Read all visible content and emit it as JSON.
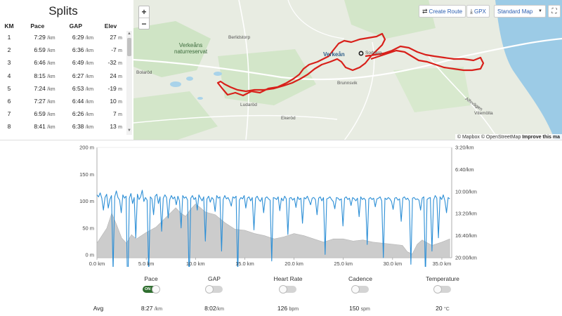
{
  "splits": {
    "title": "Splits",
    "headers": [
      "KM",
      "Pace",
      "GAP",
      "Elev"
    ],
    "rows": [
      {
        "km": "1",
        "pace": "7:29",
        "gap": "6:29",
        "elev": "27"
      },
      {
        "km": "2",
        "pace": "6:59",
        "gap": "6:36",
        "elev": "-7"
      },
      {
        "km": "3",
        "pace": "6:46",
        "gap": "6:49",
        "elev": "-32"
      },
      {
        "km": "4",
        "pace": "8:15",
        "gap": "6:27",
        "elev": "24"
      },
      {
        "km": "5",
        "pace": "7:24",
        "gap": "6:53",
        "elev": "-19"
      },
      {
        "km": "6",
        "pace": "7:27",
        "gap": "6:44",
        "elev": "10"
      },
      {
        "km": "7",
        "pace": "6:59",
        "gap": "6:26",
        "elev": "7"
      },
      {
        "km": "8",
        "pace": "8:41",
        "gap": "6:38",
        "elev": "13"
      }
    ],
    "pace_unit": "/km",
    "elev_unit": "m"
  },
  "map": {
    "labels": {
      "nature_reserve": "Verkeåns\nnaturreservat",
      "berlidstorp": "Berlidstorp",
      "verkean": "Verkeån",
      "brunnsvik": "Brunnsvik",
      "ludarod": "Ludaröd",
      "ekerod": "Ekeröd",
      "vitemolla": "Vitemölla",
      "alfsvagen": "Alfsvägen",
      "bolaro": "Bolaröd",
      "sodra": "Sodrarg"
    },
    "zoom_in": "+",
    "zoom_out": "−",
    "create_route": "Create Route",
    "gpx": "GPX",
    "map_type": "Standard Map",
    "attribution": {
      "mapbox": "© Mapbox",
      "osm": "© OpenStreetMap",
      "improve": "Improve this ma"
    },
    "colors": {
      "route": "#d8201a",
      "water": "#9ccbe6",
      "land": "#e7ebe0",
      "forest": "#cde3c3"
    }
  },
  "chart_data": {
    "type": "area",
    "x_unit": "km",
    "xlim": [
      0,
      36
    ],
    "x_ticks": [
      "0.0 km",
      "5.0 km",
      "10.0 km",
      "15.0 km",
      "20.0 km",
      "25.0 km",
      "30.0 km",
      "35.0 km"
    ],
    "y_left_ticks": [
      "200 m",
      "150 m",
      "100 m",
      "50 m",
      "0 m"
    ],
    "y_left_range": [
      -5,
      200
    ],
    "y_right_ticks": [
      "3:20/km",
      "6:40/km",
      "10:00/km",
      "13:20/km",
      "16:40/km",
      "20:00/km"
    ],
    "series": [
      {
        "name": "Elevation",
        "color": "#c8c8c8",
        "x": [
          0,
          1,
          1.5,
          2,
          2.5,
          3,
          3.5,
          4,
          5,
          6,
          7,
          8,
          8.5,
          9,
          9.5,
          10,
          10.5,
          11,
          12,
          13,
          14,
          15,
          16,
          17,
          18,
          19,
          20,
          21,
          22,
          23,
          24,
          25,
          26,
          27,
          28,
          29,
          30,
          31,
          31.5,
          32,
          32.5,
          33,
          34,
          35,
          35.8
        ],
        "values": [
          22,
          50,
          78,
          56,
          32,
          22,
          38,
          30,
          42,
          52,
          70,
          88,
          78,
          72,
          85,
          95,
          88,
          80,
          75,
          60,
          48,
          46,
          40,
          36,
          30,
          34,
          40,
          36,
          30,
          24,
          30,
          30,
          26,
          28,
          24,
          22,
          20,
          18,
          6,
          2,
          20,
          28,
          18,
          24,
          30
        ]
      },
      {
        "name": "Pace",
        "color": "#2d8fd6",
        "x_range": [
          0,
          35.8
        ],
        "values": [
          10.5,
          10.8,
          10.2,
          11.0,
          12.8,
          10.9,
          10.4,
          12.5,
          11.2,
          10.6,
          22.0,
          10.8,
          9.9,
          10.9,
          11.3,
          13.2,
          10.5,
          11.0,
          10.7,
          26.5,
          11.0,
          10.3,
          11.8,
          10.9,
          17.0,
          10.4,
          11.2,
          10.8,
          9.8,
          11.5,
          10.9,
          11.3,
          22.5,
          10.8,
          11.1,
          13.5,
          10.7,
          10.4,
          11.8,
          10.8,
          16.0,
          11.0,
          10.5,
          10.9,
          14.0,
          11.2,
          10.6,
          11.1,
          10.8,
          12.0,
          10.7,
          11.4,
          15.5,
          10.6,
          11.0,
          10.8,
          11.3,
          24.0,
          11.0,
          10.6,
          11.2,
          10.9,
          12.8,
          10.5,
          11.0,
          11.4,
          10.8,
          17.5,
          11.1,
          10.7,
          11.6,
          10.9,
          11.2,
          13.0,
          10.6,
          11.0,
          10.8,
          19.0,
          11.2,
          10.6,
          11.1,
          10.9,
          11.4,
          12.2,
          10.8,
          11.0,
          10.7,
          22.8,
          11.3,
          10.9,
          11.1,
          10.6,
          12.5,
          11.0,
          10.8,
          11.4,
          10.9,
          15.8,
          11.0,
          10.7,
          11.2,
          11.5,
          10.9,
          13.2,
          11.0,
          10.8,
          11.1,
          11.3,
          20.5,
          10.9,
          11.0,
          11.2,
          10.8,
          12.9,
          11.0,
          11.4,
          10.7,
          11.1,
          16.5,
          11.0,
          10.9,
          11.3,
          11.0,
          12.4,
          10.8,
          11.2,
          11.0,
          14.8,
          10.9,
          11.1,
          10.7,
          11.3,
          12.0,
          11.0,
          10.9,
          11.2,
          13.5,
          11.0,
          10.8,
          11.4,
          10.9,
          19.5,
          11.1,
          11.0,
          10.8,
          11.2,
          11.5,
          12.6,
          10.9,
          11.0,
          11.3,
          11.1,
          15.2,
          11.0,
          10.8,
          11.2,
          11.0,
          12.1,
          10.9,
          11.1,
          11.4,
          11.0,
          13.8,
          10.8,
          11.2,
          11.0,
          11.3,
          18.0,
          11.1,
          10.9,
          11.2,
          11.0,
          12.3,
          11.1,
          11.0,
          10.8,
          11.4,
          20.0,
          11.0,
          11.2,
          10.9,
          11.1,
          11.5,
          12.7,
          11.0,
          10.9,
          11.3,
          11.1,
          14.5,
          11.0,
          10.8,
          11.2,
          11.0,
          11.4,
          21.0,
          11.0,
          10.9,
          11.2,
          11.1,
          11.3,
          12.8,
          11.0,
          10.8,
          23.0,
          11.2,
          11.0,
          10.9,
          19.0,
          11.3,
          10.6,
          11.0,
          17.0,
          10.8,
          11.2,
          10.5,
          11.4,
          13.2,
          10.9,
          11.1
        ]
      }
    ]
  },
  "toggles": [
    {
      "label": "Pace",
      "state": "on",
      "on_text": "ON"
    },
    {
      "label": "GAP",
      "state": "off"
    },
    {
      "label": "Heart Rate",
      "state": "off"
    },
    {
      "label": "Cadence",
      "state": "off"
    },
    {
      "label": "Temperature",
      "state": "off"
    }
  ],
  "avg": {
    "label": "Avg",
    "pace_value": "8:27",
    "pace_unit": "/km",
    "gap_value": "8:02",
    "gap_unit": "/km",
    "hr_value": "126",
    "hr_unit": "bpm",
    "cadence_value": "150",
    "cadence_unit": "spm",
    "temp_value": "20",
    "temp_unit": "°C"
  }
}
